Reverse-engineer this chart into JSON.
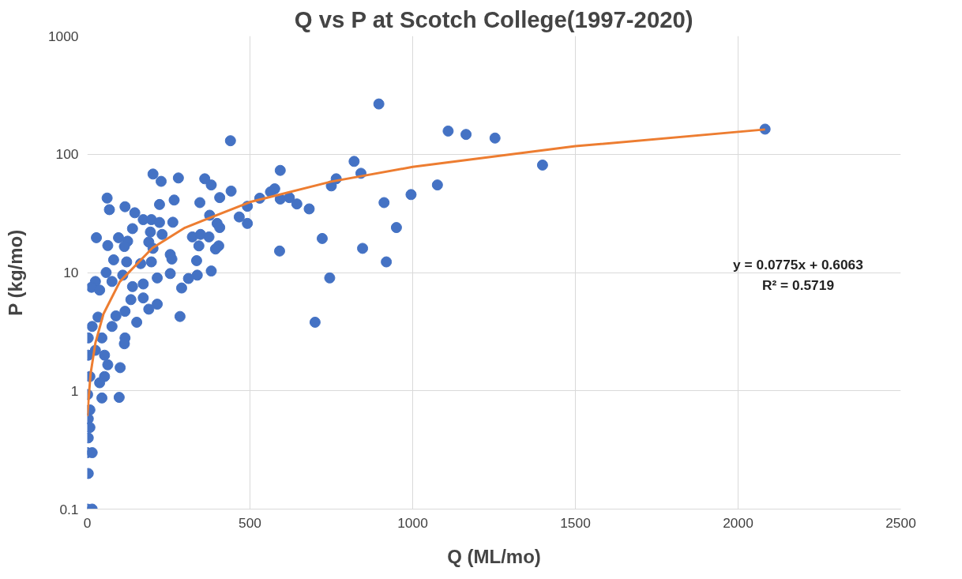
{
  "chart_data": {
    "type": "scatter",
    "title": "Q vs P at Scotch College(1997-2020)",
    "xlabel": "Q (ML/mo)",
    "ylabel": "P (kg/mo)",
    "log": "y",
    "grid": true,
    "xlim": [
      0,
      2500
    ],
    "xticks": [
      0,
      500,
      1000,
      1500,
      2000,
      2500
    ],
    "ylim": [
      0.1,
      1000
    ],
    "yticks": [
      0.1,
      1,
      10,
      100,
      1000
    ],
    "annotations": [
      "y = 0.0775x + 0.6063",
      "R² = 0.5719"
    ],
    "series": [
      {
        "color": "#4472c4",
        "marker": "circle",
        "x": [
          2083,
          896,
          1109,
          1164,
          1253,
          1399,
          440,
          820,
          841,
          765,
          750,
          1076,
          995,
          912,
          950,
          722,
          846,
          919,
          745,
          700,
          593,
          576,
          563,
          593,
          621,
          644,
          682,
          591,
          530,
          492,
          492,
          467,
          442,
          407,
          381,
          361,
          280,
          267,
          346,
          263,
          376,
          399,
          407,
          323,
          348,
          374,
          343,
          404,
          394,
          255,
          260,
          336,
          381,
          255,
          338,
          311,
          290,
          285,
          202,
          227,
          61,
          68,
          116,
          146,
          222,
          172,
          197,
          222,
          139,
          194,
          230,
          28,
          63,
          96,
          124,
          114,
          189,
          202,
          81,
          121,
          164,
          197,
          58,
          25,
          13,
          38,
          76,
          109,
          139,
          172,
          215,
          134,
          172,
          215,
          189,
          152,
          116,
          88,
          76,
          116,
          114,
          33,
          15,
          3,
          45,
          25,
          53,
          3,
          63,
          101,
          53,
          8,
          38,
          45,
          98,
          1,
          8,
          3,
          8,
          3,
          0,
          15,
          3,
          0,
          15
        ],
        "values": [
          163,
          266,
          157,
          147,
          137,
          81,
          130,
          87,
          69,
          62,
          54,
          55,
          45.6,
          39,
          24,
          19.4,
          16,
          12.3,
          9.0,
          3.8,
          73,
          51,
          48,
          41.8,
          43,
          38,
          34.5,
          15.2,
          42.5,
          36.3,
          26,
          29.5,
          48.8,
          43,
          55,
          62,
          63,
          41,
          39,
          26.6,
          30.5,
          26,
          24,
          20,
          21,
          20,
          16.8,
          16.8,
          15.8,
          14.2,
          13,
          12.6,
          10.3,
          9.8,
          9.5,
          8.9,
          7.4,
          4.25,
          68,
          59,
          42.6,
          34,
          36,
          32,
          37.6,
          28,
          28,
          26.5,
          23.5,
          22,
          21,
          19.7,
          16.9,
          19.7,
          18.4,
          16.6,
          18.1,
          16,
          12.8,
          12.3,
          11.9,
          12.3,
          10,
          8.4,
          7.5,
          7.1,
          8.4,
          9.5,
          7.6,
          8.0,
          9.0,
          5.9,
          6.1,
          5.4,
          4.9,
          3.8,
          4.7,
          4.3,
          3.5,
          2.8,
          2.5,
          4.2,
          3.5,
          2.8,
          2.8,
          2.2,
          2.0,
          2.0,
          1.66,
          1.57,
          1.32,
          1.32,
          1.17,
          0.87,
          0.88,
          0.93,
          0.69,
          0.58,
          0.49,
          0.4,
          0.3,
          0.3,
          0.2,
          0.1,
          0.1
        ]
      },
      {
        "type": "line",
        "marker": "none",
        "color": "#ed7d31",
        "x": [
          0,
          10,
          25,
          50,
          100,
          200,
          300,
          500,
          750,
          1000,
          1500,
          2083
        ],
        "values": [
          0.61,
          1.38,
          2.54,
          4.48,
          8.36,
          16.1,
          23.9,
          39.4,
          58.7,
          78.1,
          116.9,
          162
        ]
      }
    ]
  }
}
